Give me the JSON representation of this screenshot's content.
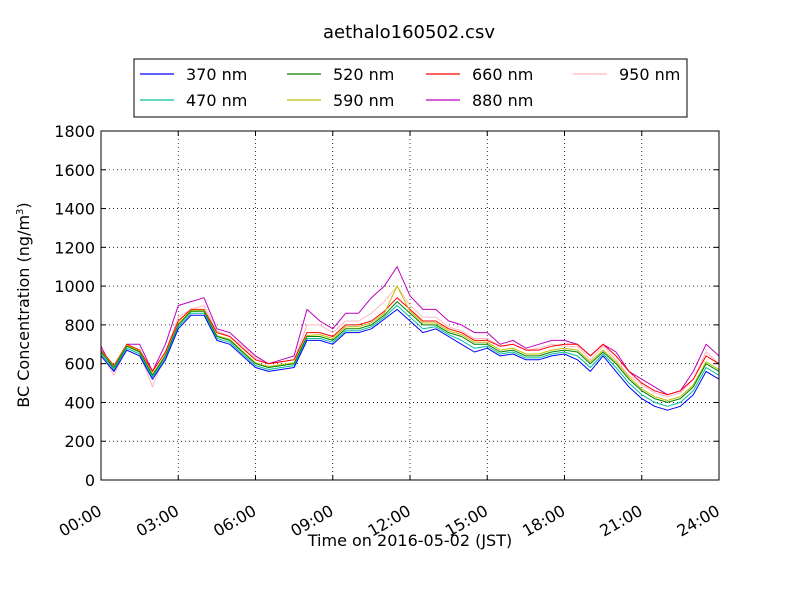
{
  "chart_data": {
    "type": "line",
    "title": "aethalo160502.csv",
    "xlabel": "Time on 2016-05-02 (JST)",
    "ylabel_main": "BC Concentration (ng/m",
    "ylabel_sup": "3",
    "ylabel_end": ")",
    "xlim": [
      "00:00",
      "24:00"
    ],
    "ylim": [
      0,
      1800
    ],
    "x_ticks": [
      "00:00",
      "03:00",
      "06:00",
      "09:00",
      "12:00",
      "15:00",
      "18:00",
      "21:00",
      "24:00"
    ],
    "y_ticks": [
      "0",
      "200",
      "400",
      "600",
      "800",
      "1000",
      "1200",
      "1400",
      "1600",
      "1800"
    ],
    "grid": true,
    "legend_position": "top-center, above plot",
    "x_hours": [
      0,
      0.5,
      1,
      1.5,
      2,
      2.5,
      3,
      3.5,
      4,
      4.5,
      5,
      5.5,
      6,
      6.5,
      7,
      7.5,
      8,
      8.5,
      9,
      9.5,
      10,
      10.5,
      11,
      11.5,
      12,
      12.5,
      13,
      13.5,
      14,
      14.5,
      15,
      15.5,
      16,
      16.5,
      17,
      17.5,
      18,
      18.5,
      19,
      19.5,
      20,
      20.5,
      21,
      21.5,
      22,
      22.5,
      23,
      23.5,
      24
    ],
    "series": [
      {
        "name": "370 nm",
        "color": "#0000ff",
        "values": [
          640,
          560,
          670,
          640,
          520,
          620,
          780,
          850,
          850,
          720,
          700,
          640,
          580,
          560,
          570,
          580,
          720,
          720,
          700,
          760,
          760,
          780,
          830,
          880,
          820,
          760,
          780,
          740,
          700,
          660,
          680,
          640,
          650,
          620,
          620,
          640,
          650,
          620,
          560,
          640,
          560,
          480,
          420,
          380,
          360,
          380,
          440,
          560,
          520
        ]
      },
      {
        "name": "470 nm",
        "color": "#00c0a0",
        "values": [
          650,
          570,
          680,
          650,
          530,
          630,
          790,
          860,
          860,
          730,
          710,
          650,
          590,
          570,
          580,
          590,
          730,
          730,
          710,
          770,
          770,
          790,
          840,
          900,
          840,
          780,
          790,
          750,
          720,
          680,
          690,
          650,
          660,
          630,
          630,
          650,
          660,
          640,
          580,
          650,
          580,
          500,
          440,
          400,
          380,
          400,
          460,
          580,
          540
        ]
      },
      {
        "name": "520 nm",
        "color": "#008000",
        "values": [
          660,
          580,
          690,
          660,
          540,
          640,
          800,
          870,
          870,
          740,
          720,
          660,
          600,
          580,
          590,
          600,
          740,
          740,
          720,
          780,
          780,
          800,
          850,
          920,
          860,
          800,
          800,
          760,
          740,
          700,
          700,
          660,
          670,
          640,
          640,
          660,
          670,
          660,
          600,
          660,
          600,
          520,
          460,
          420,
          400,
          420,
          480,
          600,
          560
        ]
      },
      {
        "name": "590 nm",
        "color": "#c0c000",
        "values": [
          665,
          585,
          695,
          665,
          545,
          645,
          805,
          875,
          875,
          745,
          725,
          665,
          605,
          585,
          595,
          605,
          745,
          750,
          730,
          790,
          790,
          810,
          860,
          1000,
          870,
          810,
          810,
          770,
          750,
          710,
          710,
          670,
          680,
          650,
          650,
          670,
          680,
          670,
          610,
          670,
          610,
          530,
          470,
          430,
          410,
          430,
          490,
          610,
          570
        ]
      },
      {
        "name": "660 nm",
        "color": "#ff0000",
        "values": [
          670,
          590,
          700,
          670,
          560,
          660,
          820,
          880,
          880,
          760,
          740,
          680,
          620,
          600,
          610,
          620,
          760,
          760,
          740,
          800,
          800,
          820,
          870,
          940,
          880,
          820,
          820,
          780,
          760,
          720,
          720,
          690,
          700,
          670,
          670,
          690,
          700,
          700,
          640,
          700,
          640,
          560,
          500,
          460,
          440,
          460,
          520,
          640,
          600
        ]
      },
      {
        "name": "880 nm",
        "color": "#c000c0",
        "values": [
          690,
          560,
          700,
          700,
          560,
          700,
          900,
          920,
          940,
          780,
          760,
          700,
          640,
          600,
          620,
          640,
          880,
          820,
          780,
          860,
          860,
          940,
          1000,
          1100,
          950,
          880,
          880,
          820,
          800,
          760,
          760,
          700,
          720,
          680,
          700,
          720,
          720,
          700,
          640,
          700,
          660,
          560,
          520,
          480,
          440,
          460,
          560,
          700,
          640
        ]
      },
      {
        "name": "950 nm",
        "color": "#ffb6c1",
        "values": [
          650,
          540,
          680,
          650,
          480,
          660,
          840,
          880,
          900,
          770,
          740,
          690,
          630,
          600,
          610,
          620,
          800,
          800,
          760,
          820,
          820,
          860,
          920,
          1000,
          900,
          840,
          840,
          790,
          770,
          730,
          730,
          690,
          700,
          670,
          680,
          700,
          690,
          690,
          620,
          690,
          620,
          540,
          490,
          450,
          430,
          450,
          520,
          660,
          600
        ]
      }
    ]
  }
}
